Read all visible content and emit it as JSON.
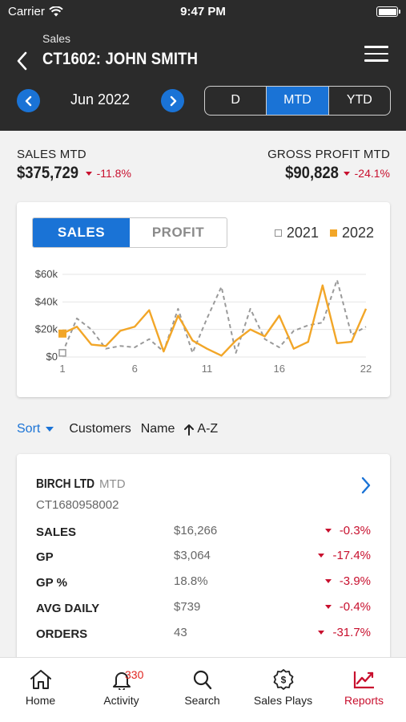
{
  "status_bar": {
    "carrier": "Carrier",
    "time": "9:47 PM"
  },
  "header": {
    "breadcrumb": "Sales",
    "title": "CT1602: JOHN SMITH",
    "period_label": "Jun 2022",
    "range_options": [
      "D",
      "MTD",
      "YTD"
    ],
    "range_selected": "MTD"
  },
  "kpis": {
    "sales": {
      "label": "SALES MTD",
      "value": "$375,729",
      "delta": "-11.8%"
    },
    "gross_profit": {
      "label": "GROSS PROFIT MTD",
      "value": "$90,828",
      "delta": "-24.1%"
    }
  },
  "chart_toggle": {
    "sales": "SALES",
    "profit": "PROFIT",
    "selected": "SALES"
  },
  "colors": {
    "accent": "#1a73d6",
    "series_2022": "#f2a628",
    "series_2021": "#9a9a9a",
    "negative": "#c8102e",
    "header_bg": "#2b2b2b"
  },
  "chart_data": {
    "type": "line",
    "x_ticks": [
      "1",
      "6",
      "11",
      "16",
      "22"
    ],
    "y_ticks": [
      "$60k",
      "$40k",
      "$20k",
      "$0"
    ],
    "ylim": [
      0,
      60000
    ],
    "xlim": [
      1,
      22
    ],
    "grid": true,
    "legend_position": "top-right",
    "series": [
      {
        "name": "2021",
        "style": "dashed",
        "x": [
          1,
          2,
          3,
          4,
          5,
          6,
          7,
          8,
          9,
          10,
          11,
          12,
          13,
          14,
          15,
          16,
          17,
          18,
          19,
          20,
          21,
          22
        ],
        "y": [
          3000,
          28000,
          20000,
          6000,
          8000,
          7000,
          13000,
          4000,
          35000,
          3000,
          28000,
          51000,
          3000,
          35000,
          13000,
          7000,
          19000,
          23000,
          25000,
          56000,
          16000,
          22000
        ]
      },
      {
        "name": "2022",
        "style": "solid",
        "x": [
          1,
          2,
          3,
          4,
          5,
          6,
          7,
          8,
          9,
          10,
          11,
          12,
          13,
          14,
          15,
          16,
          17,
          18,
          19,
          20,
          21,
          22
        ],
        "y": [
          17000,
          22000,
          9000,
          8000,
          19000,
          22000,
          34000,
          4000,
          30000,
          12000,
          6000,
          1000,
          12000,
          20000,
          15000,
          30000,
          6000,
          11000,
          52000,
          10000,
          11000,
          35000
        ]
      }
    ]
  },
  "sort_bar": {
    "sort_label": "Sort",
    "field": "Customers",
    "sub_field": "Name",
    "order": "A-Z"
  },
  "customer": {
    "name": "BIRCH LTD",
    "period": "MTD",
    "id": "CT1680958002",
    "metrics": [
      {
        "label": "SALES",
        "value": "$16,266",
        "delta": "-0.3%"
      },
      {
        "label": "GP",
        "value": "$3,064",
        "delta": "-17.4%"
      },
      {
        "label": "GP %",
        "value": "18.8%",
        "delta": "-3.9%"
      },
      {
        "label": "AVG DAILY",
        "value": "$739",
        "delta": "-0.4%"
      },
      {
        "label": "ORDERS",
        "value": "43",
        "delta": "-31.7%"
      }
    ]
  },
  "tab_bar": {
    "items": [
      {
        "label": "Home",
        "icon": "home-icon"
      },
      {
        "label": "Activity",
        "icon": "bell-icon",
        "badge": "330"
      },
      {
        "label": "Search",
        "icon": "search-icon"
      },
      {
        "label": "Sales Plays",
        "icon": "dollar-badge-icon"
      },
      {
        "label": "Reports",
        "icon": "chart-icon"
      }
    ],
    "selected": "Reports"
  }
}
